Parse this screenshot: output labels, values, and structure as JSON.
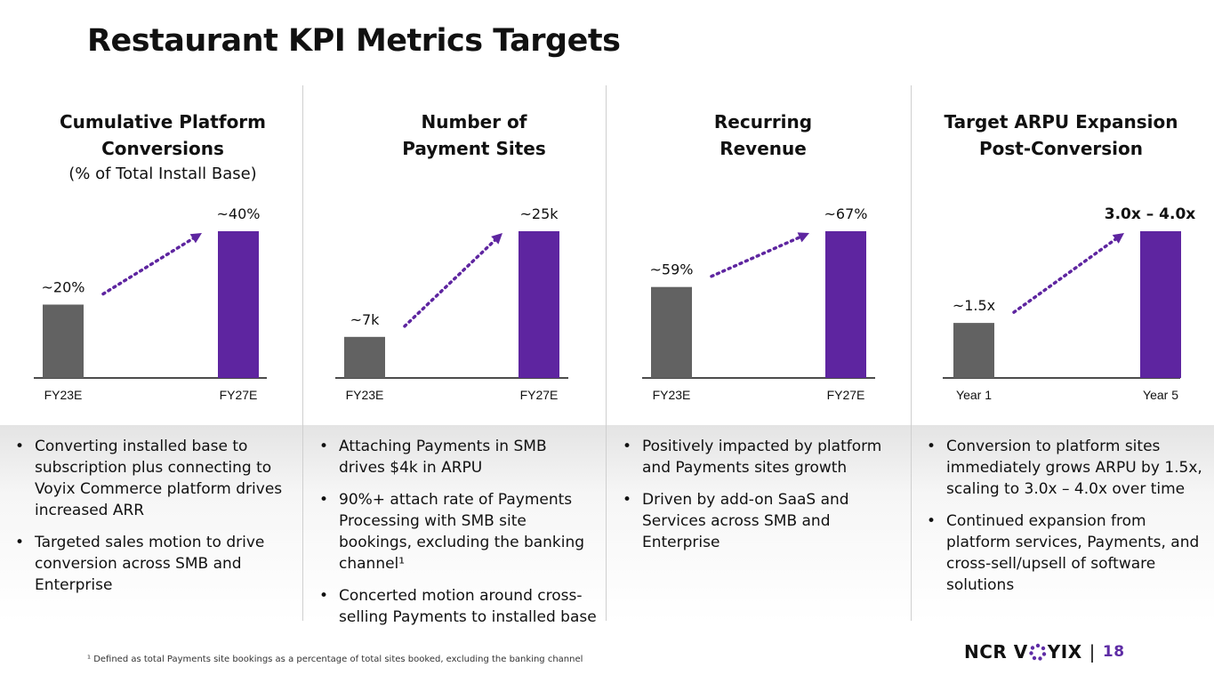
{
  "page": {
    "title": "Restaurant KPI Metrics Targets",
    "footnote": "¹ Defined as total Payments site bookings as a percentage of total sites booked, excluding the banking channel",
    "logo_left": "NCR V",
    "logo_right": "YIX",
    "page_number": "18"
  },
  "colors": {
    "gray_bar": "#626262",
    "purple_bar": "#5e25a0",
    "arrow": "#5e25a0"
  },
  "columns": [
    {
      "heading_line1": "Cumulative Platform",
      "heading_line2": "Conversions",
      "subheading": "(% of Total Install Base)",
      "bullets": [
        "Converting installed base to subscription plus connecting to Voyix Commerce platform drives increased ARR",
        "Targeted sales motion to drive conversion across SMB and Enterprise"
      ]
    },
    {
      "heading_line1": "Number of",
      "heading_line2": "Payment Sites",
      "subheading": "",
      "bullets": [
        "Attaching Payments in SMB drives $4k in ARPU",
        "90%+ attach rate of Payments Processing with SMB site bookings, excluding the banking channel¹",
        "Concerted motion around cross-selling Payments to installed base"
      ]
    },
    {
      "heading_line1": "Recurring",
      "heading_line2": "Revenue",
      "subheading": "",
      "bullets": [
        "Positively impacted by platform and Payments sites growth",
        "Driven by add-on SaaS and Services across SMB and Enterprise"
      ]
    },
    {
      "heading_line1": "Target ARPU Expansion",
      "heading_line2": "Post-Conversion",
      "subheading": "",
      "bullets": [
        "Conversion to platform sites immediately grows ARPU by 1.5x, scaling to 3.0x – 4.0x over time",
        "Continued expansion from platform services, Payments, and cross-sell/upsell of software solutions"
      ]
    }
  ],
  "chart_data": [
    {
      "type": "bar",
      "title": "Cumulative Platform Conversions",
      "categories": [
        "FY23E",
        "FY27E"
      ],
      "values": [
        20,
        40
      ],
      "labels": [
        "~20%",
        "~40%"
      ],
      "ylim": [
        0,
        40
      ]
    },
    {
      "type": "bar",
      "title": "Number of Payment Sites",
      "categories": [
        "FY23E",
        "FY27E"
      ],
      "values": [
        7,
        25
      ],
      "labels": [
        "~7k",
        "~25k"
      ],
      "ylim": [
        0,
        25
      ]
    },
    {
      "type": "bar",
      "title": "Recurring Revenue",
      "categories": [
        "FY23E",
        "FY27E"
      ],
      "values": [
        59,
        67
      ],
      "labels": [
        "~59%",
        "~67%"
      ],
      "ylim": [
        50,
        70
      ]
    },
    {
      "type": "bar",
      "title": "Target ARPU Expansion Post-Conversion",
      "categories": [
        "Year 1",
        "Year 5"
      ],
      "values": [
        1.5,
        4.0
      ],
      "labels": [
        "~1.5x",
        "3.0x – 4.0x"
      ],
      "ylim": [
        0,
        4
      ]
    }
  ]
}
